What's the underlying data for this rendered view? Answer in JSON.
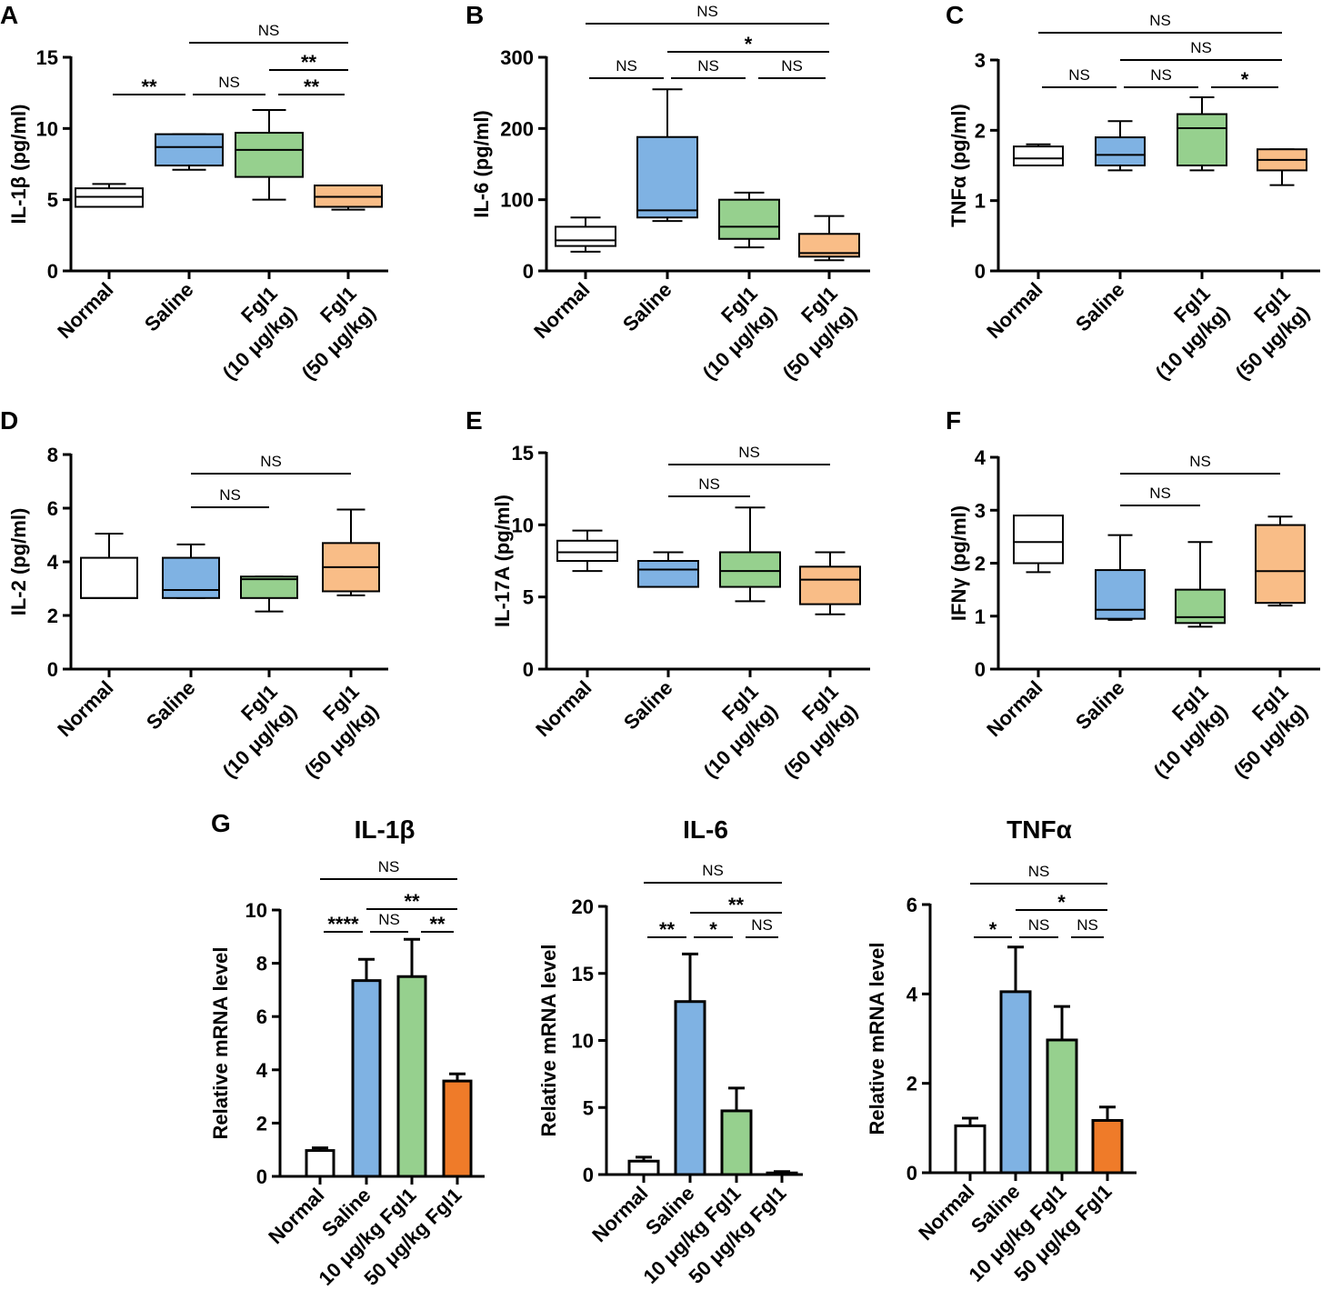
{
  "figure": {
    "colors": {
      "normal": "#ffffff",
      "saline": "#7fb2e3",
      "fgl10": "#96d08e",
      "fgl50_box": "#f9bd87",
      "fgl50_bar": "#ef7b29",
      "stroke": "#000000"
    }
  },
  "chart_data": [
    {
      "id": "A",
      "type": "box",
      "panel_label": "A",
      "ylabel": "IL-1β (pg/ml)",
      "ylim": [
        0,
        15
      ],
      "yticks": [
        "0",
        "5",
        "10",
        "15"
      ],
      "categories": [
        [
          "Normal"
        ],
        [
          "Saline"
        ],
        [
          "Fgl1",
          "(10 μg/kg)"
        ],
        [
          "Fgl1",
          "(50 μg/kg)"
        ]
      ],
      "boxes": [
        {
          "min": 4.5,
          "q1": 4.5,
          "median": 5.2,
          "q3": 5.8,
          "max": 6.1
        },
        {
          "min": 7.1,
          "q1": 7.4,
          "median": 8.7,
          "q3": 9.6,
          "max": 9.6
        },
        {
          "min": 5.0,
          "q1": 6.6,
          "median": 8.5,
          "q3": 9.7,
          "max": 11.3
        },
        {
          "min": 4.3,
          "q1": 4.5,
          "median": 5.2,
          "q3": 6.0,
          "max": 6.0
        }
      ],
      "significance": [
        {
          "from": 1,
          "to": 3,
          "label": "NS",
          "level": 0
        },
        {
          "from": 2,
          "to": 3,
          "label": "**",
          "level": 1
        },
        {
          "from": 0,
          "to": 1,
          "label": "**",
          "level": 2
        },
        {
          "from": 1,
          "to": 2,
          "label": "NS",
          "level": 2
        },
        {
          "from": 2,
          "to": 3,
          "label": "**",
          "level": 2,
          "offset": 1
        }
      ]
    },
    {
      "id": "B",
      "type": "box",
      "panel_label": "B",
      "ylabel": "IL-6 (pg/ml)",
      "ylim": [
        0,
        300
      ],
      "yticks": [
        "0",
        "100",
        "200",
        "300"
      ],
      "categories": [
        [
          "Normal"
        ],
        [
          "Saline"
        ],
        [
          "Fgl1",
          "(10 μg/kg)"
        ],
        [
          "Fgl1",
          "(50 μg/kg)"
        ]
      ],
      "boxes": [
        {
          "min": 27,
          "q1": 35,
          "median": 43,
          "q3": 62,
          "max": 75
        },
        {
          "min": 70,
          "q1": 75,
          "median": 85,
          "q3": 188,
          "max": 255
        },
        {
          "min": 33,
          "q1": 45,
          "median": 62,
          "q3": 100,
          "max": 110
        },
        {
          "min": 15,
          "q1": 20,
          "median": 25,
          "q3": 52,
          "max": 77
        }
      ],
      "significance": [
        {
          "from": 0,
          "to": 3,
          "label": "NS",
          "level": 0
        },
        {
          "from": 1,
          "to": 3,
          "label": "*",
          "level": 1
        },
        {
          "from": 0,
          "to": 1,
          "label": "NS",
          "level": 2
        },
        {
          "from": 1,
          "to": 2,
          "label": "NS",
          "level": 2
        },
        {
          "from": 2,
          "to": 3,
          "label": "NS",
          "level": 2,
          "offset": 1
        }
      ]
    },
    {
      "id": "C",
      "type": "box",
      "panel_label": "C",
      "ylabel": "TNFα (pg/ml)",
      "ylim": [
        0,
        3
      ],
      "yticks": [
        "0",
        "1",
        "2",
        "3"
      ],
      "categories": [
        [
          "Normal"
        ],
        [
          "Saline"
        ],
        [
          "Fgl1",
          "(10 μg/kg)"
        ],
        [
          "Fgl1",
          "(50 μg/kg)"
        ]
      ],
      "boxes": [
        {
          "min": 1.5,
          "q1": 1.5,
          "median": 1.6,
          "q3": 1.77,
          "max": 1.8
        },
        {
          "min": 1.43,
          "q1": 1.5,
          "median": 1.65,
          "q3": 1.9,
          "max": 2.13
        },
        {
          "min": 1.43,
          "q1": 1.5,
          "median": 2.03,
          "q3": 2.23,
          "max": 2.47
        },
        {
          "min": 1.22,
          "q1": 1.43,
          "median": 1.58,
          "q3": 1.73,
          "max": 1.73
        }
      ],
      "significance": [
        {
          "from": 0,
          "to": 3,
          "label": "NS",
          "level": 0
        },
        {
          "from": 1,
          "to": 3,
          "label": "NS",
          "level": 1
        },
        {
          "from": 0,
          "to": 1,
          "label": "NS",
          "level": 2
        },
        {
          "from": 1,
          "to": 2,
          "label": "NS",
          "level": 2
        },
        {
          "from": 2,
          "to": 3,
          "label": "*",
          "level": 2,
          "offset": 1
        }
      ]
    },
    {
      "id": "D",
      "type": "box",
      "panel_label": "D",
      "ylabel": "IL-2 (pg/ml)",
      "ylim": [
        0,
        8
      ],
      "yticks": [
        "0",
        "2",
        "4",
        "6",
        "8"
      ],
      "categories": [
        [
          "Normal"
        ],
        [
          "Saline"
        ],
        [
          "Fgl1",
          "(10 μg/kg)"
        ],
        [
          "Fgl1",
          "(50 μg/kg)"
        ]
      ],
      "boxes": [
        {
          "min": 2.65,
          "q1": 2.65,
          "median": 2.65,
          "q3": 4.15,
          "max": 5.05
        },
        {
          "min": 2.65,
          "q1": 2.65,
          "median": 2.95,
          "q3": 4.15,
          "max": 4.65
        },
        {
          "min": 2.15,
          "q1": 2.65,
          "median": 3.35,
          "q3": 3.45,
          "max": 3.45
        },
        {
          "min": 2.75,
          "q1": 2.9,
          "median": 3.8,
          "q3": 4.7,
          "max": 5.95
        }
      ],
      "significance": [
        {
          "from": 1,
          "to": 3,
          "label": "NS",
          "level": 0
        },
        {
          "from": 1,
          "to": 2,
          "label": "NS",
          "level": 1
        }
      ]
    },
    {
      "id": "E",
      "type": "box",
      "panel_label": "E",
      "ylabel": "IL-17A (pg/ml)",
      "ylim": [
        0,
        15
      ],
      "yticks": [
        "0",
        "5",
        "10",
        "15"
      ],
      "categories": [
        [
          "Normal"
        ],
        [
          "Saline"
        ],
        [
          "Fgl1",
          "(10 μg/kg)"
        ],
        [
          "Fgl1",
          "(50 μg/kg)"
        ]
      ],
      "boxes": [
        {
          "min": 6.8,
          "q1": 7.5,
          "median": 8.1,
          "q3": 8.9,
          "max": 9.6
        },
        {
          "min": 5.7,
          "q1": 5.7,
          "median": 6.9,
          "q3": 7.5,
          "max": 8.1
        },
        {
          "min": 4.7,
          "q1": 5.7,
          "median": 6.8,
          "q3": 8.1,
          "max": 11.2
        },
        {
          "min": 3.8,
          "q1": 4.5,
          "median": 6.2,
          "q3": 7.1,
          "max": 8.1
        }
      ],
      "significance": [
        {
          "from": 1,
          "to": 3,
          "label": "NS",
          "level": 0
        },
        {
          "from": 1,
          "to": 2,
          "label": "NS",
          "level": 1
        }
      ]
    },
    {
      "id": "F",
      "type": "box",
      "panel_label": "F",
      "ylabel": "IFNγ (pg/ml)",
      "ylim": [
        0,
        4
      ],
      "yticks": [
        "0",
        "1",
        "2",
        "3",
        "4"
      ],
      "categories": [
        [
          "Normal"
        ],
        [
          "Saline"
        ],
        [
          "Fgl1",
          "(10 μg/kg)"
        ],
        [
          "Fgl1",
          "(50 μg/kg)"
        ]
      ],
      "boxes": [
        {
          "min": 1.83,
          "q1": 2.0,
          "median": 2.4,
          "q3": 2.9,
          "max": 2.9
        },
        {
          "min": 0.93,
          "q1": 0.95,
          "median": 1.12,
          "q3": 1.87,
          "max": 2.53
        },
        {
          "min": 0.8,
          "q1": 0.87,
          "median": 0.98,
          "q3": 1.5,
          "max": 2.4
        },
        {
          "min": 1.2,
          "q1": 1.25,
          "median": 1.85,
          "q3": 2.72,
          "max": 2.88
        }
      ],
      "significance": [
        {
          "from": 1,
          "to": 3,
          "label": "NS",
          "level": 0
        },
        {
          "from": 1,
          "to": 2,
          "label": "NS",
          "level": 1
        }
      ]
    },
    {
      "id": "G1",
      "type": "bar",
      "panel_label": "G",
      "title": "IL-1β",
      "ylabel": "Relative mRNA level",
      "ylim": [
        0,
        10
      ],
      "yticks": [
        "0",
        "2",
        "4",
        "6",
        "8",
        "10"
      ],
      "categories": [
        "Normal",
        "Saline",
        "10 μg/kg Fgl1",
        "50 μg/kg Fgl1"
      ],
      "values": [
        0.97,
        7.35,
        7.5,
        3.58
      ],
      "errors": [
        0.1,
        0.8,
        1.4,
        0.27
      ],
      "significance": [
        {
          "from": 0,
          "to": 3,
          "label": "NS",
          "level": 0
        },
        {
          "from": 1,
          "to": 3,
          "label": "**",
          "level": 1
        },
        {
          "from": 0,
          "to": 1,
          "label": "****",
          "level": 2
        },
        {
          "from": 1,
          "to": 2,
          "label": "NS",
          "level": 2
        },
        {
          "from": 2,
          "to": 3,
          "label": "**",
          "level": 2,
          "offset": 1
        }
      ]
    },
    {
      "id": "G2",
      "type": "bar",
      "title": "IL-6",
      "ylabel": "Relative mRNA level",
      "ylim": [
        0,
        20
      ],
      "yticks": [
        "0",
        "5",
        "10",
        "15",
        "20"
      ],
      "categories": [
        "Normal",
        "Saline",
        "10 μg/kg Fgl1",
        "50 μg/kg Fgl1"
      ],
      "values": [
        1.0,
        12.9,
        4.75,
        0.12
      ],
      "errors": [
        0.3,
        3.55,
        1.7,
        0.1
      ],
      "significance": [
        {
          "from": 0,
          "to": 3,
          "label": "NS",
          "level": 0
        },
        {
          "from": 1,
          "to": 3,
          "label": "**",
          "level": 1
        },
        {
          "from": 0,
          "to": 1,
          "label": "**",
          "level": 2
        },
        {
          "from": 1,
          "to": 2,
          "label": "*",
          "level": 2
        },
        {
          "from": 2,
          "to": 3,
          "label": "NS",
          "level": 2,
          "offset": 1
        }
      ]
    },
    {
      "id": "G3",
      "type": "bar",
      "title": "TNFα",
      "ylabel": "Relative mRNA level",
      "ylim": [
        0,
        6
      ],
      "yticks": [
        "0",
        "2",
        "4",
        "6"
      ],
      "categories": [
        "Normal",
        "Saline",
        "10 μg/kg Fgl1",
        "50 μg/kg Fgl1"
      ],
      "values": [
        1.05,
        4.05,
        2.97,
        1.17
      ],
      "errors": [
        0.17,
        1.0,
        0.75,
        0.3
      ],
      "significance": [
        {
          "from": 0,
          "to": 3,
          "label": "NS",
          "level": 0
        },
        {
          "from": 1,
          "to": 3,
          "label": "*",
          "level": 1
        },
        {
          "from": 0,
          "to": 1,
          "label": "*",
          "level": 2
        },
        {
          "from": 1,
          "to": 2,
          "label": "NS",
          "level": 2
        },
        {
          "from": 2,
          "to": 3,
          "label": "NS",
          "level": 2,
          "offset": 1
        }
      ]
    }
  ]
}
